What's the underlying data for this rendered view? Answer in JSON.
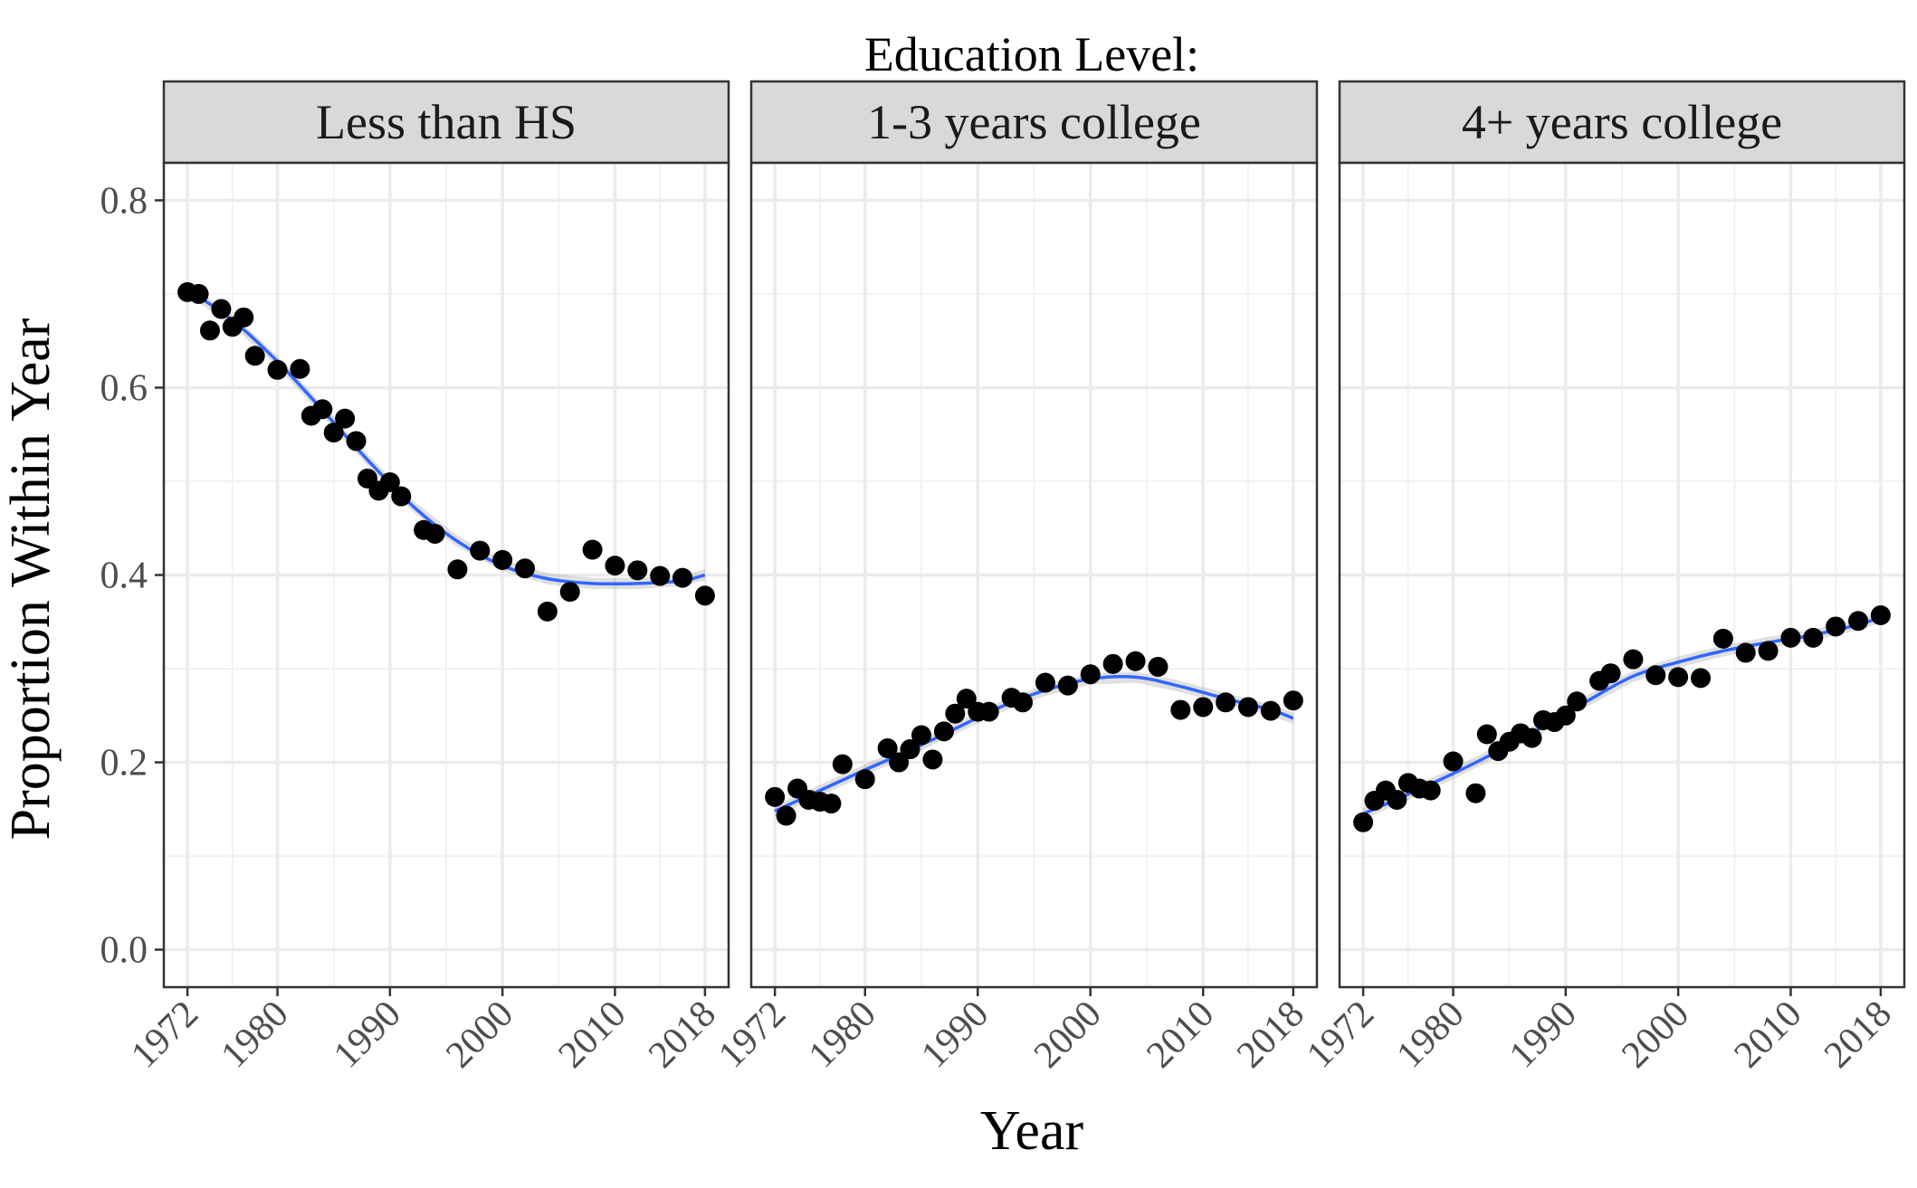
{
  "chart_data": {
    "type": "scatter",
    "title": "Education Level:",
    "xlabel": "Year",
    "ylabel": "Proportion Within Year",
    "x_ticks": [
      1972,
      1980,
      1990,
      2000,
      2010,
      2018
    ],
    "x_tick_labels": [
      "1972",
      "1980",
      "1990",
      "2000",
      "2010",
      "2018"
    ],
    "y_ticks": [
      0.0,
      0.2,
      0.4,
      0.6,
      0.8
    ],
    "y_tick_labels": [
      "0.0",
      "0.2",
      "0.4",
      "0.6",
      "0.8"
    ],
    "xlim": [
      1969.9,
      2020.1
    ],
    "ylim": [
      -0.04,
      0.84
    ],
    "grid": true,
    "smoother_color": "#3366FF",
    "point_color": "#000000",
    "panels": [
      {
        "label": "Less than HS",
        "x": [
          1972,
          1973,
          1974,
          1975,
          1976,
          1977,
          1978,
          1980,
          1982,
          1983,
          1984,
          1985,
          1986,
          1987,
          1988,
          1989,
          1990,
          1991,
          1993,
          1994,
          1996,
          1998,
          2000,
          2002,
          2004,
          2006,
          2008,
          2010,
          2012,
          2014,
          2016,
          2018
        ],
        "y": [
          0.702,
          0.7,
          0.661,
          0.684,
          0.665,
          0.675,
          0.634,
          0.619,
          0.62,
          0.57,
          0.577,
          0.552,
          0.567,
          0.543,
          0.503,
          0.49,
          0.499,
          0.484,
          0.448,
          0.444,
          0.406,
          0.426,
          0.416,
          0.407,
          0.361,
          0.382,
          0.427,
          0.41,
          0.405,
          0.399,
          0.397,
          0.378
        ],
        "trend": [
          [
            1972,
            0.705
          ],
          [
            1976,
            0.672
          ],
          [
            1980,
            0.628
          ],
          [
            1984,
            0.576
          ],
          [
            1988,
            0.523
          ],
          [
            1992,
            0.474
          ],
          [
            1996,
            0.436
          ],
          [
            2000,
            0.41
          ],
          [
            2004,
            0.396
          ],
          [
            2008,
            0.391
          ],
          [
            2012,
            0.391
          ],
          [
            2016,
            0.394
          ],
          [
            2018,
            0.4
          ]
        ]
      },
      {
        "label": "1-3 years college",
        "x": [
          1972,
          1973,
          1974,
          1975,
          1976,
          1977,
          1978,
          1980,
          1982,
          1983,
          1984,
          1985,
          1986,
          1987,
          1988,
          1989,
          1990,
          1991,
          1993,
          1994,
          1996,
          1998,
          2000,
          2002,
          2004,
          2006,
          2008,
          2010,
          2012,
          2014,
          2016,
          2018
        ],
        "y": [
          0.163,
          0.143,
          0.172,
          0.16,
          0.158,
          0.156,
          0.198,
          0.182,
          0.215,
          0.2,
          0.214,
          0.229,
          0.203,
          0.233,
          0.252,
          0.268,
          0.254,
          0.254,
          0.269,
          0.264,
          0.285,
          0.282,
          0.294,
          0.305,
          0.308,
          0.302,
          0.256,
          0.259,
          0.264,
          0.259,
          0.255,
          0.266
        ],
        "trend": [
          [
            1972,
            0.148
          ],
          [
            1976,
            0.17
          ],
          [
            1980,
            0.192
          ],
          [
            1984,
            0.213
          ],
          [
            1988,
            0.236
          ],
          [
            1992,
            0.259
          ],
          [
            1996,
            0.277
          ],
          [
            2000,
            0.289
          ],
          [
            2004,
            0.291
          ],
          [
            2008,
            0.281
          ],
          [
            2012,
            0.268
          ],
          [
            2016,
            0.256
          ],
          [
            2018,
            0.247
          ]
        ]
      },
      {
        "label": "4+ years college",
        "x": [
          1972,
          1973,
          1974,
          1975,
          1976,
          1977,
          1978,
          1980,
          1982,
          1983,
          1984,
          1985,
          1986,
          1987,
          1988,
          1989,
          1990,
          1991,
          1993,
          1994,
          1996,
          1998,
          2000,
          2002,
          2004,
          2006,
          2008,
          2010,
          2012,
          2014,
          2016,
          2018
        ],
        "y": [
          0.136,
          0.159,
          0.17,
          0.16,
          0.178,
          0.172,
          0.17,
          0.201,
          0.167,
          0.23,
          0.212,
          0.222,
          0.231,
          0.226,
          0.245,
          0.243,
          0.25,
          0.265,
          0.287,
          0.295,
          0.31,
          0.293,
          0.291,
          0.29,
          0.332,
          0.317,
          0.319,
          0.333,
          0.333,
          0.345,
          0.351,
          0.357
        ],
        "trend": [
          [
            1972,
            0.145
          ],
          [
            1976,
            0.166
          ],
          [
            1980,
            0.188
          ],
          [
            1984,
            0.212
          ],
          [
            1988,
            0.238
          ],
          [
            1992,
            0.266
          ],
          [
            1996,
            0.292
          ],
          [
            2000,
            0.307
          ],
          [
            2004,
            0.319
          ],
          [
            2008,
            0.328
          ],
          [
            2012,
            0.336
          ],
          [
            2016,
            0.347
          ],
          [
            2018,
            0.355
          ]
        ]
      }
    ]
  }
}
